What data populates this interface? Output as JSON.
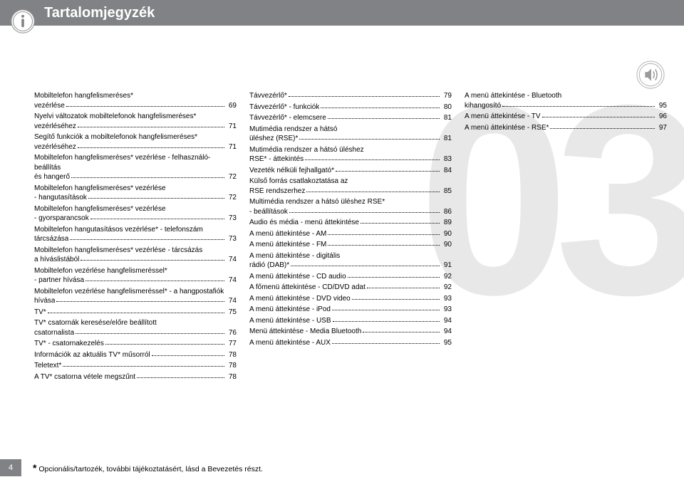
{
  "header": {
    "title": "Tartalomjegyzék"
  },
  "page_number": "4",
  "footnote": {
    "star": "*",
    "text": " Opcionális/tartozék, további tájékoztatásért, lásd a Bevezetés részt."
  },
  "chapter_decor": "03",
  "col1": [
    {
      "label": "Mobiltelefon hangfelismeréses* vezérlése",
      "page": "69",
      "wrap": true
    },
    {
      "label": "Nyelvi változatok mobiltelefonok hangfelismeréses* vezérléséhez",
      "page": "71",
      "wrap": true
    },
    {
      "label": "Segítő funkciók a mobiltelefonok hangfelismeréses* vezérléséhez",
      "page": "71",
      "wrap": true
    },
    {
      "label": "Mobiltelefon hangfelismeréses* vezérlése - felhasználó-beállítás és hangerő",
      "page": "72",
      "wrap": true
    },
    {
      "label": "Mobiltelefon hangfelismeréses* vezérlése - hangutasítások",
      "page": "72",
      "wrap": true
    },
    {
      "label": "Mobiltelefon hangfelismeréses* vezérlése - gyorsparancsok",
      "page": "73",
      "wrap": true
    },
    {
      "label": "Mobiltelefon hangutasításos vezérlése* - telefonszám tárcsázása",
      "page": "73",
      "wrap": true
    },
    {
      "label": "Mobiltelefon hangfelismeréses* vezérlése - tárcsázás a híváslistából",
      "page": "74",
      "wrap": true
    },
    {
      "label": "Mobiltelefon vezérlése hangfelismeréssel* - partner hívása",
      "page": "74",
      "wrap": true
    },
    {
      "label": "Mobiltelefon vezérlése hangfelismeréssel* - a hangpostafiók hívása",
      "page": "74",
      "wrap": true
    },
    {
      "label": "TV*",
      "page": "75"
    },
    {
      "label": "TV* csatornák keresése/előre beállított csatornalista",
      "page": "76",
      "wrap": true
    },
    {
      "label": "TV* - csatornakezelés",
      "page": "77"
    },
    {
      "label": "Információk az aktuális TV* műsorról",
      "page": "78"
    },
    {
      "label": "Teletext*",
      "page": "78"
    },
    {
      "label": "A TV* csatorna vétele megszűnt",
      "page": "78"
    }
  ],
  "col2": [
    {
      "label": "Távvezérlő*",
      "page": "79"
    },
    {
      "label": "Távvezérlő* - funkciók",
      "page": "80"
    },
    {
      "label": "Távvezérlő* - elemcsere",
      "page": "81"
    },
    {
      "label": "Mutimédia rendszer a hátsó üléshez (RSE)*",
      "page": "81",
      "wrap": true
    },
    {
      "label": "Mutimédia rendszer a hátsó üléshez RSE* - áttekintés",
      "page": "83",
      "wrap": true
    },
    {
      "label": "Vezeték nélküli fejhallgató*",
      "page": "84"
    },
    {
      "label": "Külső forrás csatlakoztatása az RSE rendszerhez",
      "page": "85",
      "wrap": true
    },
    {
      "label": "Multimédia rendszer a hátsó üléshez RSE* - beállítások",
      "page": "86",
      "wrap": true
    },
    {
      "label": "Audio és média - menü áttekintése",
      "page": "89"
    },
    {
      "label": "A menü áttekintése - AM",
      "page": "90"
    },
    {
      "label": "A menü áttekintése - FM",
      "page": "90"
    },
    {
      "label": "A menü áttekintése - digitális rádió (DAB)*",
      "page": "91",
      "wrap": true
    },
    {
      "label": "A menü áttekintése - CD audio",
      "page": "92"
    },
    {
      "label": "A főmenü áttekintése - CD/DVD adat",
      "page": "92"
    },
    {
      "label": "A menü áttekintése - DVD video",
      "page": "93"
    },
    {
      "label": "A menü áttekintése - iPod",
      "page": "93"
    },
    {
      "label": "A menü áttekintése - USB",
      "page": "94"
    },
    {
      "label": "Menü áttekintése - Media Bluetooth",
      "page": "94"
    },
    {
      "label": "A menü áttekintése - AUX",
      "page": "95"
    }
  ],
  "col3": [
    {
      "label": "A menü áttekintése - Bluetooth kihangosító",
      "page": "95",
      "wrap": true
    },
    {
      "label": "A menü áttekintése - TV",
      "page": "96"
    },
    {
      "label": "A menü áttekintése - RSE*",
      "page": "97"
    }
  ]
}
